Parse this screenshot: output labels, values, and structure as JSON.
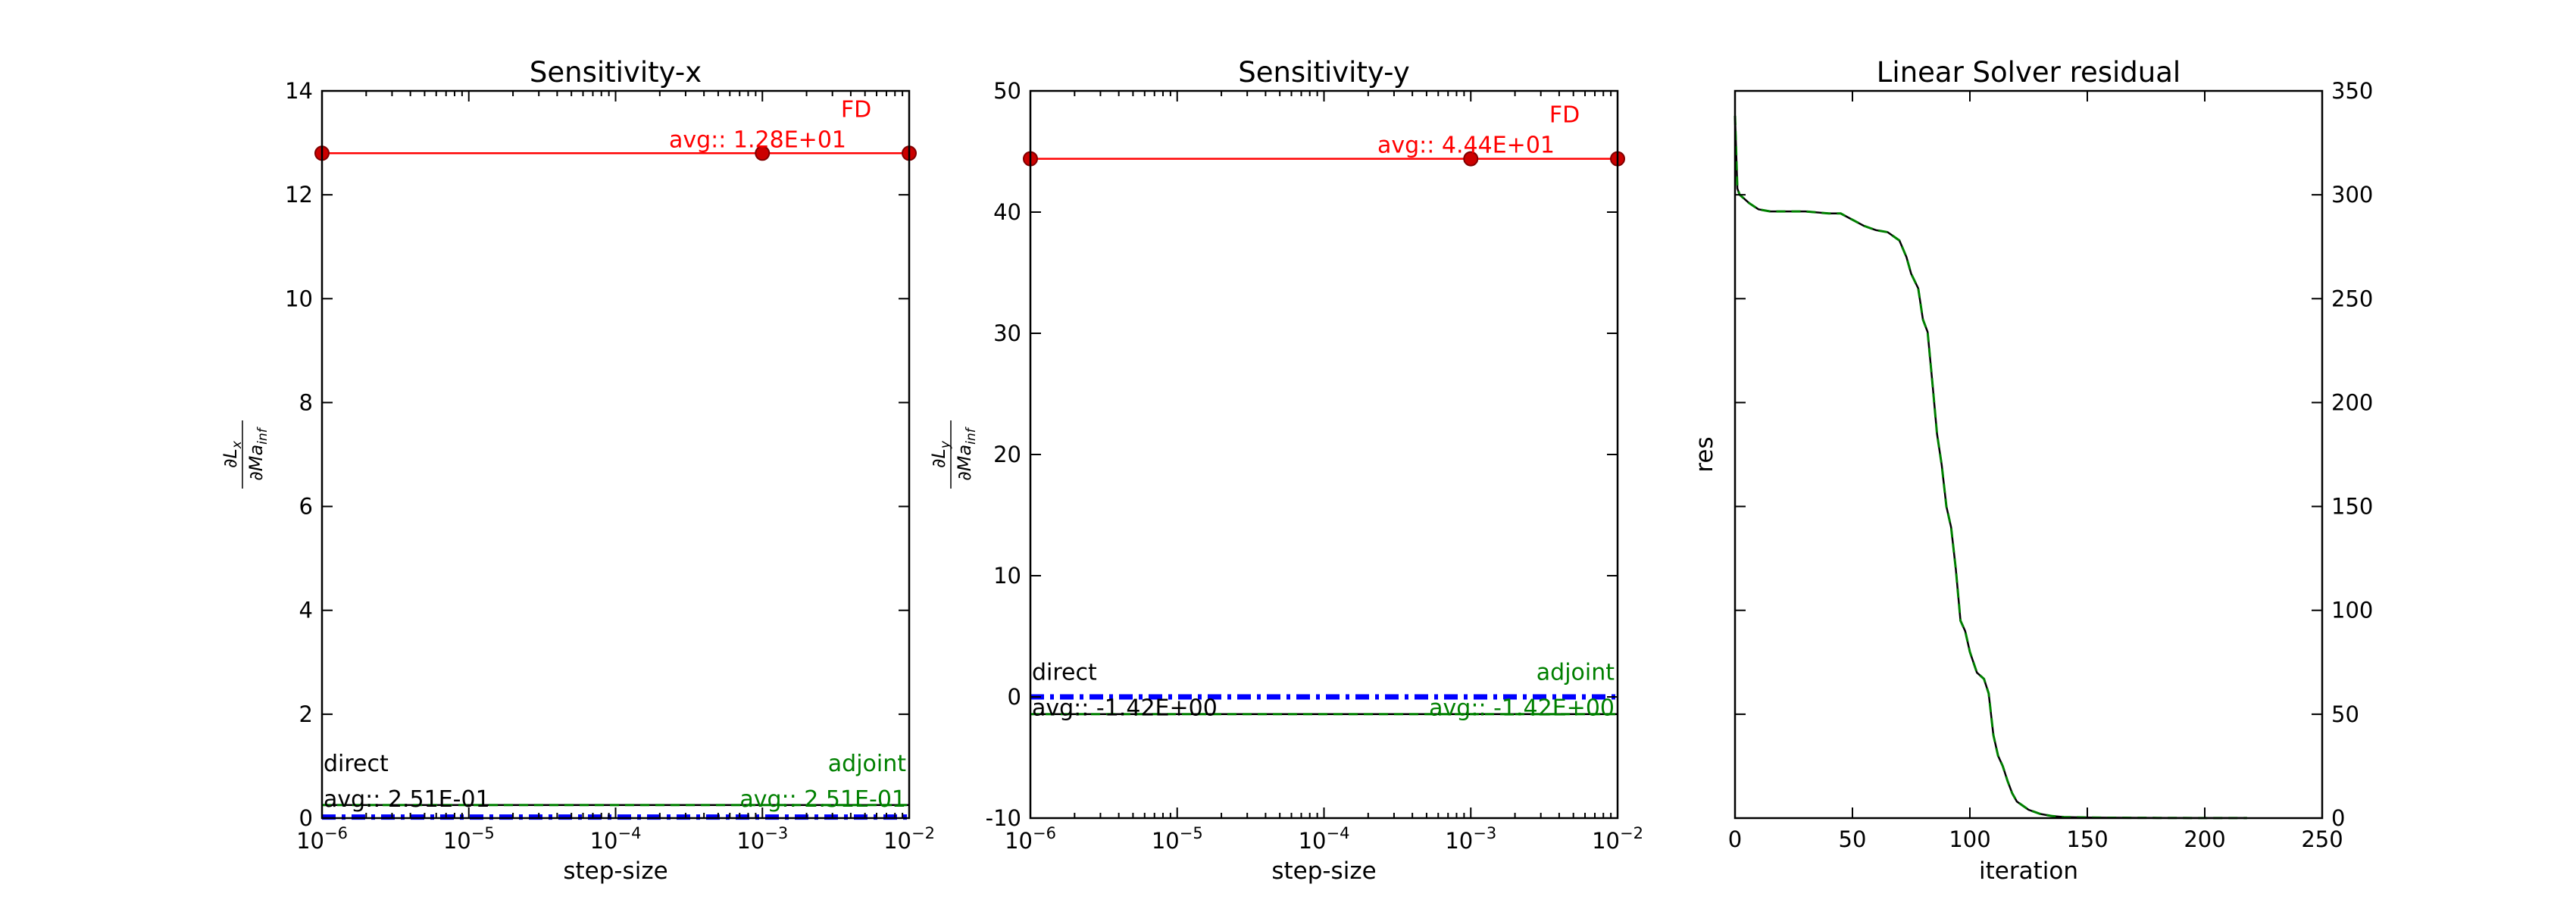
{
  "chart_data": [
    {
      "type": "line",
      "title": "Sensitivity-x",
      "xlabel": "step-size",
      "ylabel": "∂L_x / ∂Ma_inf",
      "xscale": "log",
      "xlim": [
        1e-06,
        0.01
      ],
      "ylim": [
        0,
        14
      ],
      "x_tick_labels": [
        "10^-6",
        "10^-5",
        "10^-4",
        "10^-3",
        "10^-2"
      ],
      "y_ticks": [
        0,
        2,
        4,
        6,
        8,
        10,
        12,
        14
      ],
      "series": [
        {
          "name": "FD",
          "color": "#ff0000",
          "style": "solid-markers",
          "x": [
            1e-06,
            0.001,
            0.01
          ],
          "y": [
            12.8,
            12.8,
            12.8
          ]
        },
        {
          "name": "direct",
          "color": "#000000",
          "style": "solid",
          "x": [
            1e-06,
            0.01
          ],
          "y": [
            0.251,
            0.251
          ]
        },
        {
          "name": "adjoint",
          "color": "#008000",
          "style": "dashed",
          "x": [
            1e-06,
            0.01
          ],
          "y": [
            0.251,
            0.251
          ]
        },
        {
          "color": "#0000ff",
          "style": "dashdot",
          "x": [
            1e-06,
            0.01
          ],
          "y": [
            0.02,
            0.02
          ]
        }
      ],
      "annotations": [
        {
          "name": "FD",
          "label": "FD",
          "value": "avg:: 1.28E+01",
          "color": "#ff0000"
        },
        {
          "name": "direct",
          "label": "direct",
          "value": "avg:: 2.51E-01",
          "color": "#000000"
        },
        {
          "name": "adjoint",
          "label": "adjoint",
          "value": "avg:: 2.51E-01",
          "color": "#008000"
        }
      ]
    },
    {
      "type": "line",
      "title": "Sensitivity-y",
      "xlabel": "step-size",
      "ylabel": "∂L_y / ∂Ma_inf",
      "xscale": "log",
      "xlim": [
        1e-06,
        0.01
      ],
      "ylim": [
        -10,
        50
      ],
      "x_tick_labels": [
        "10^-6",
        "10^-5",
        "10^-4",
        "10^-3",
        "10^-2"
      ],
      "y_ticks": [
        -10,
        0,
        10,
        20,
        30,
        40,
        50
      ],
      "series": [
        {
          "name": "FD",
          "color": "#ff0000",
          "style": "solid-markers",
          "x": [
            1e-06,
            0.001,
            0.01
          ],
          "y": [
            44.4,
            44.4,
            44.4
          ]
        },
        {
          "name": "direct",
          "color": "#000000",
          "style": "solid",
          "x": [
            1e-06,
            0.01
          ],
          "y": [
            -1.42,
            -1.42
          ]
        },
        {
          "name": "adjoint",
          "color": "#008000",
          "style": "dashed",
          "x": [
            1e-06,
            0.01
          ],
          "y": [
            -1.42,
            -1.42
          ]
        },
        {
          "color": "#0000ff",
          "style": "dashdot",
          "x": [
            1e-06,
            0.01
          ],
          "y": [
            0.0,
            0.0
          ]
        }
      ],
      "annotations": [
        {
          "name": "FD",
          "label": "FD",
          "value": "avg:: 4.44E+01",
          "color": "#ff0000"
        },
        {
          "name": "direct",
          "label": "direct",
          "value": "avg:: -1.42E+00",
          "color": "#000000"
        },
        {
          "name": "adjoint",
          "label": "adjoint",
          "value": "avg:: -1.42E+00",
          "color": "#008000"
        }
      ]
    },
    {
      "type": "line",
      "title": "Linear Solver residual",
      "xlabel": "iteration",
      "ylabel": "res",
      "xlim": [
        0,
        250
      ],
      "ylim": [
        0,
        350
      ],
      "x_ticks": [
        0,
        50,
        100,
        150,
        200,
        250
      ],
      "y_ticks": [
        0,
        50,
        100,
        150,
        200,
        250,
        300,
        350
      ],
      "y_axis_side": "right",
      "series": [
        {
          "color": "#000000",
          "style": "solid",
          "x": [
            0,
            0.5,
            1,
            2,
            4,
            6,
            10,
            15,
            20,
            30,
            40,
            45,
            50,
            55,
            60,
            65,
            70,
            73,
            75,
            78,
            80,
            82,
            84,
            86,
            88,
            90,
            92,
            94,
            96,
            98,
            100,
            103,
            106,
            108,
            110,
            112,
            114,
            116,
            118,
            120,
            125,
            130,
            135,
            140,
            150,
            160,
            180,
            200,
            218
          ],
          "y": [
            338,
            320,
            303,
            300,
            298,
            296,
            293,
            292,
            292,
            292,
            291,
            291,
            288,
            285,
            283,
            282,
            278,
            270,
            262,
            255,
            240,
            234,
            210,
            185,
            170,
            150,
            140,
            120,
            95,
            90,
            80,
            70,
            67,
            60,
            40,
            30,
            25,
            18,
            12,
            8,
            4,
            2,
            1,
            0.5,
            0.3,
            0.2,
            0.1,
            0.05,
            0.05
          ]
        },
        {
          "color": "#008000",
          "style": "dashed",
          "x": [
            0,
            0.5,
            1,
            2,
            4,
            6,
            10,
            15,
            20,
            30,
            40,
            45,
            50,
            55,
            60,
            65,
            70,
            73,
            75,
            78,
            80,
            82,
            84,
            86,
            88,
            90,
            92,
            94,
            96,
            98,
            100,
            103,
            106,
            108,
            110,
            112,
            114,
            116,
            118,
            120,
            125,
            130,
            135,
            140,
            150,
            160,
            180,
            200,
            218
          ],
          "y": [
            338,
            320,
            303,
            300,
            298,
            296,
            293,
            292,
            292,
            292,
            291,
            291,
            288,
            285,
            283,
            282,
            278,
            270,
            262,
            255,
            240,
            234,
            210,
            185,
            170,
            150,
            140,
            120,
            95,
            90,
            80,
            70,
            67,
            60,
            40,
            30,
            25,
            18,
            12,
            8,
            4,
            2,
            1,
            0.5,
            0.3,
            0.2,
            0.1,
            0.05,
            0.05
          ]
        }
      ]
    }
  ]
}
